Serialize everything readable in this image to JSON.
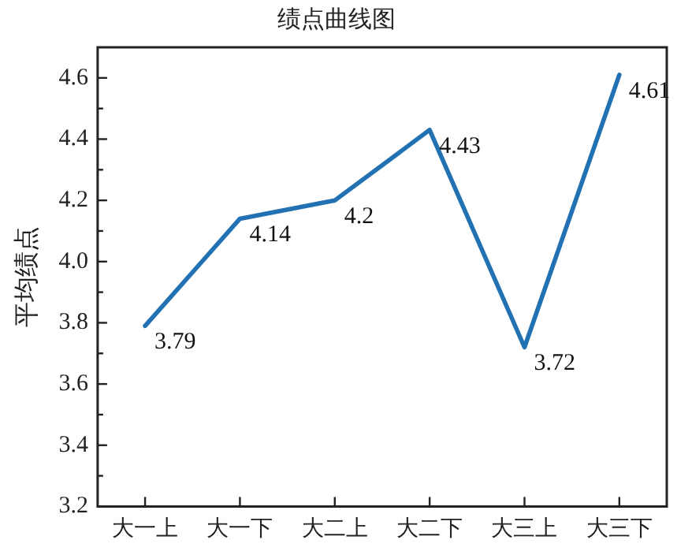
{
  "chart_data": {
    "type": "line",
    "title": "绩点曲线图",
    "ylabel": "平均绩点",
    "categories": [
      "大一上",
      "大一下",
      "大二上",
      "大二下",
      "大三上",
      "大三下"
    ],
    "series": [
      {
        "color": "#2271b3",
        "values": [
          3.79,
          4.14,
          4.2,
          4.43,
          3.72,
          4.61
        ]
      }
    ],
    "ylim": [
      3.2,
      4.7
    ],
    "yticks": [
      3.2,
      {
        "value": 3.3,
        "label": null
      },
      3.4,
      {
        "value": 3.5,
        "label": null
      },
      3.6,
      {
        "value": 3.7,
        "label": null
      },
      3.8,
      {
        "value": 3.9,
        "label": null
      },
      {
        "value": 4.0,
        "label": "4.0"
      },
      {
        "value": 4.1,
        "label": null
      },
      4.2,
      {
        "value": 4.3,
        "label": null
      },
      4.4,
      {
        "value": 4.5,
        "label": null
      },
      4.6
    ],
    "data_labels": true,
    "grid": false,
    "legend": false,
    "marker": "none",
    "line_style": "solid"
  }
}
